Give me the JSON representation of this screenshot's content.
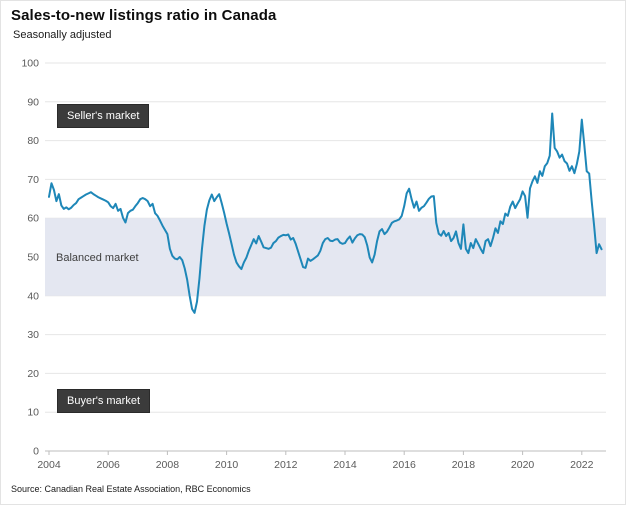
{
  "header": {
    "title": "Sales-to-new listings ratio in Canada",
    "subtitle": "Seasonally adjusted"
  },
  "source": "Source: Canadian Real Estate Association, RBC Economics",
  "chart_data": {
    "type": "line",
    "title": "Sales-to-new listings ratio in Canada",
    "subtitle": "Seasonally adjusted",
    "ylim": [
      0,
      100
    ],
    "y_ticks": [
      0,
      10,
      20,
      30,
      40,
      50,
      60,
      70,
      80,
      90,
      100
    ],
    "x_tick_labels": [
      "2004",
      "2006",
      "2008",
      "2010",
      "2012",
      "2014",
      "2016",
      "2018",
      "2020",
      "2022"
    ],
    "grid": "horizontal",
    "line_color": "#1e87b8",
    "band": {
      "label": "Balanced market",
      "from": 40,
      "to": 60,
      "color": "#e4e7f1"
    },
    "annotations": [
      {
        "label": "Seller's market",
        "y_center": 81,
        "style": "dark-box"
      },
      {
        "label": "Balanced market",
        "y_center": 50,
        "style": "plain-text"
      },
      {
        "label": "Buyer's market",
        "y_center": 13,
        "style": "dark-box"
      }
    ],
    "series": [
      {
        "name": "Sales-to-new listings ratio (%)",
        "frequency": "monthly",
        "start": "2004-01",
        "end": "2022-09",
        "values": [
          65.5,
          69.0,
          67.3,
          64.4,
          66.2,
          63.3,
          62.4,
          62.8,
          62.3,
          62.7,
          63.4,
          63.9,
          64.9,
          65.3,
          65.7,
          66.1,
          66.4,
          66.7,
          66.2,
          65.8,
          65.4,
          65.1,
          64.8,
          64.5,
          64.1,
          63.1,
          62.6,
          63.7,
          61.9,
          62.4,
          60.1,
          58.9,
          61.3,
          61.9,
          62.2,
          63.1,
          63.9,
          64.9,
          65.2,
          64.9,
          64.4,
          63.1,
          63.7,
          61.3,
          60.6,
          59.4,
          58.1,
          57.0,
          55.9,
          52.1,
          50.3,
          49.6,
          49.4,
          50.0,
          49.2,
          47.1,
          44.2,
          40.1,
          36.6,
          35.6,
          38.5,
          44.5,
          52.0,
          58.0,
          62.2,
          64.6,
          66.1,
          64.4,
          65.4,
          66.2,
          63.9,
          61.4,
          58.6,
          56.1,
          53.4,
          50.6,
          48.6,
          47.6,
          46.9,
          48.6,
          49.8,
          51.6,
          53.1,
          54.6,
          53.5,
          55.4,
          54.0,
          52.5,
          52.3,
          52.1,
          52.4,
          53.6,
          54.1,
          55.0,
          55.4,
          55.7,
          55.6,
          55.8,
          54.5,
          54.9,
          53.4,
          51.4,
          49.4,
          47.4,
          47.2,
          49.6,
          49.0,
          49.4,
          49.9,
          50.4,
          51.6,
          53.6,
          54.6,
          54.9,
          54.2,
          54.1,
          54.5,
          54.6,
          53.7,
          53.4,
          53.6,
          54.6,
          55.3,
          53.7,
          54.8,
          55.6,
          55.9,
          55.8,
          55.1,
          53.0,
          49.9,
          48.6,
          50.6,
          54.1,
          56.6,
          57.2,
          55.9,
          56.5,
          57.6,
          58.8,
          59.2,
          59.4,
          59.7,
          60.6,
          63.1,
          66.4,
          67.6,
          64.9,
          62.7,
          64.3,
          61.9,
          62.7,
          63.1,
          64.0,
          65.0,
          65.6,
          65.7,
          58.8,
          56.0,
          55.5,
          56.7,
          55.4,
          56.2,
          54.1,
          54.9,
          56.6,
          53.6,
          52.1,
          58.4,
          52.1,
          51.0,
          53.6,
          52.3,
          54.6,
          53.4,
          52.1,
          51.0,
          54.1,
          54.6,
          52.8,
          54.9,
          57.4,
          56.2,
          59.2,
          58.5,
          61.2,
          60.6,
          63.0,
          64.3,
          62.6,
          63.8,
          64.9,
          66.9,
          65.7,
          60.1,
          67.7,
          69.5,
          70.8,
          69.1,
          72.1,
          70.9,
          73.4,
          74.2,
          76.1,
          87.0,
          78.1,
          77.2,
          75.6,
          76.4,
          74.7,
          74.1,
          72.2,
          73.4,
          71.6,
          74.0,
          77.2,
          85.4,
          79.0,
          72.1,
          71.5,
          64.4,
          58.0,
          51.0,
          53.3,
          52.0
        ]
      }
    ]
  }
}
